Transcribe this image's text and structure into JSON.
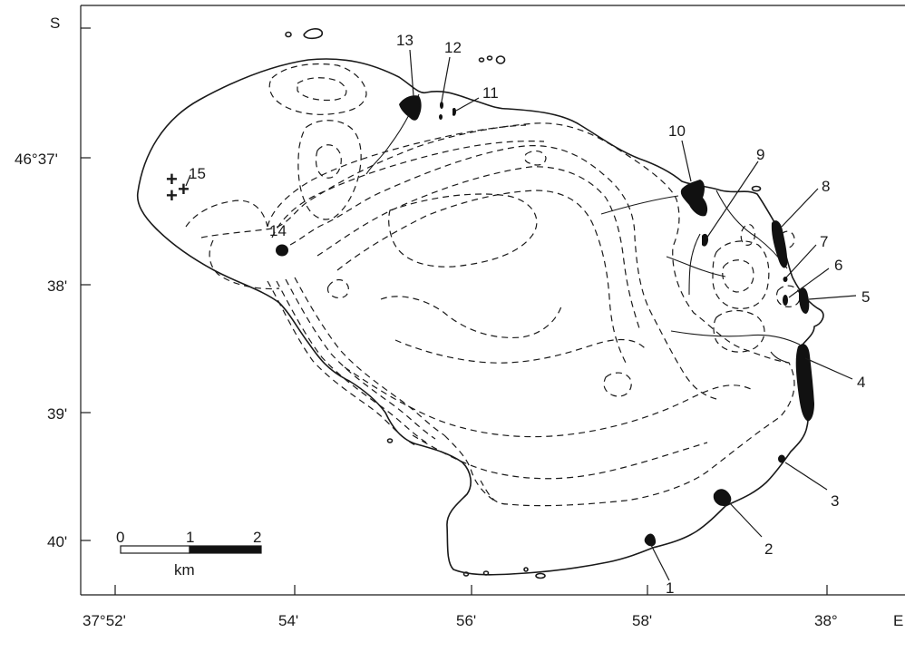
{
  "axes": {
    "y_labels": [
      "S",
      "46°37'",
      "38'",
      "39'",
      "40'"
    ],
    "x_labels": [
      "37°52'",
      "54'",
      "56'",
      "58'",
      "38°",
      "E"
    ]
  },
  "scale_bar": {
    "ticks": [
      "0",
      "1",
      "2"
    ],
    "unit": "km"
  },
  "sites": [
    {
      "label": "1"
    },
    {
      "label": "2"
    },
    {
      "label": "3"
    },
    {
      "label": "4"
    },
    {
      "label": "5"
    },
    {
      "label": "6"
    },
    {
      "label": "7"
    },
    {
      "label": "8"
    },
    {
      "label": "9"
    },
    {
      "label": "10"
    },
    {
      "label": "11"
    },
    {
      "label": "12"
    },
    {
      "label": "13"
    },
    {
      "label": "14"
    },
    {
      "label": "15"
    }
  ],
  "site_15_marker": "+"
}
